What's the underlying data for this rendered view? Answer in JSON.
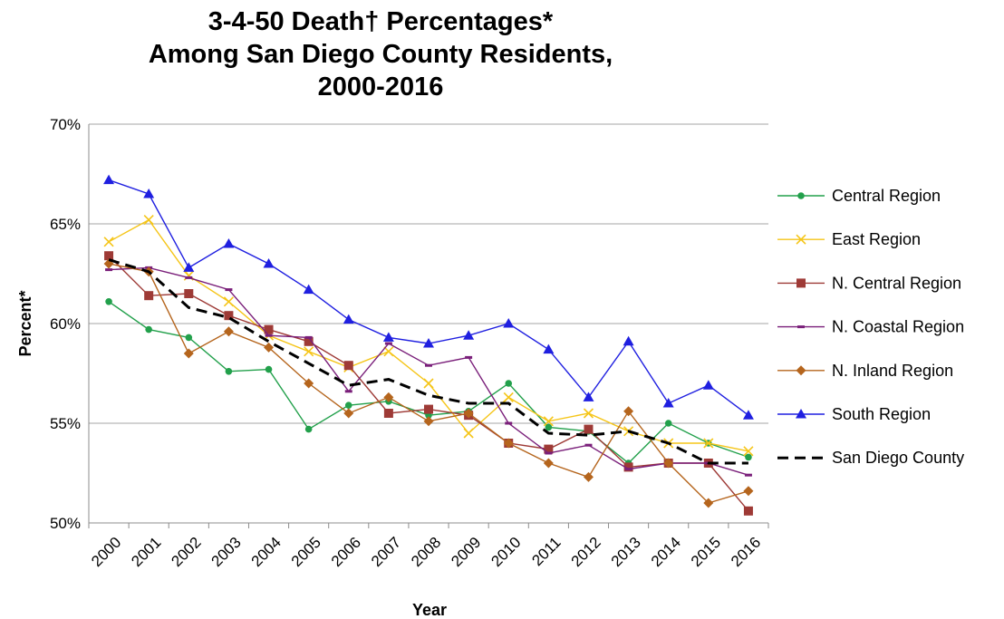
{
  "chart_data": {
    "type": "line",
    "title": [
      "3-4-50 Death† Percentages*",
      "Among San Diego County Residents,",
      "2000-2016"
    ],
    "xlabel": "Year",
    "ylabel": "Percent*",
    "ylim": [
      50,
      70
    ],
    "y_ticks": [
      "50%",
      "55%",
      "60%",
      "65%",
      "70%"
    ],
    "y_tick_values": [
      50,
      55,
      60,
      65,
      70
    ],
    "categories": [
      "2000",
      "2001",
      "2002",
      "2003",
      "2004",
      "2005",
      "2006",
      "2007",
      "2008",
      "2009",
      "2010",
      "2011",
      "2012",
      "2013",
      "2014",
      "2015",
      "2016"
    ],
    "grid": "horizontal",
    "legend_position": "right",
    "series": [
      {
        "name": "Central Region",
        "color": "#22a04b",
        "marker": "circle",
        "values": [
          61.1,
          59.7,
          59.3,
          57.6,
          57.7,
          54.7,
          55.9,
          56.1,
          55.4,
          55.6,
          57.0,
          54.8,
          54.6,
          53.0,
          55.0,
          54.0,
          53.3
        ]
      },
      {
        "name": "East Region",
        "color": "#f5c518",
        "marker": "x",
        "values": [
          64.1,
          65.2,
          62.4,
          61.1,
          59.4,
          58.6,
          57.8,
          58.6,
          57.0,
          54.5,
          56.3,
          55.1,
          55.5,
          54.6,
          54.0,
          54.0,
          53.6
        ]
      },
      {
        "name": "N. Central Region",
        "color": "#9e3a36",
        "marker": "square",
        "values": [
          63.4,
          61.4,
          61.5,
          60.4,
          59.7,
          59.1,
          57.9,
          55.5,
          55.7,
          55.4,
          54.0,
          53.7,
          54.7,
          52.8,
          53.0,
          53.0,
          50.6
        ]
      },
      {
        "name": "N. Coastal Region",
        "color": "#7a1f7a",
        "marker": "dash",
        "values": [
          62.7,
          62.8,
          62.3,
          61.7,
          59.4,
          59.3,
          56.6,
          59.0,
          57.9,
          58.3,
          55.0,
          53.5,
          53.9,
          52.7,
          53.0,
          53.0,
          52.4
        ]
      },
      {
        "name": "N. Inland Region",
        "color": "#b5651d",
        "marker": "diamond",
        "values": [
          63.0,
          62.6,
          58.5,
          59.6,
          58.8,
          57.0,
          55.5,
          56.3,
          55.1,
          55.5,
          54.0,
          53.0,
          52.3,
          55.6,
          53.0,
          51.0,
          51.6
        ]
      },
      {
        "name": "South Region",
        "color": "#1f1fe0",
        "marker": "triangle",
        "values": [
          67.2,
          66.5,
          62.8,
          64.0,
          63.0,
          61.7,
          60.2,
          59.3,
          59.0,
          59.4,
          60.0,
          58.7,
          56.3,
          59.1,
          56.0,
          56.9,
          55.4
        ]
      },
      {
        "name": "San Diego County",
        "color": "#000000",
        "marker": "none",
        "dashed": true,
        "values": [
          63.2,
          62.6,
          60.8,
          60.3,
          59.1,
          58.0,
          56.9,
          57.2,
          56.4,
          56.0,
          56.0,
          54.5,
          54.4,
          54.6,
          54.0,
          53.0,
          53.0
        ]
      }
    ]
  }
}
